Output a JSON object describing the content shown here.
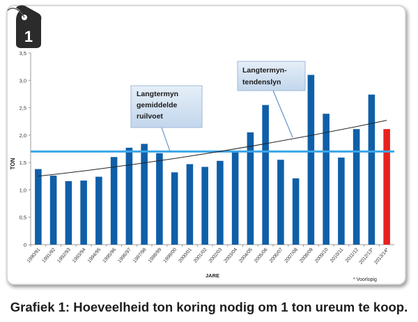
{
  "badge": {
    "number": "1"
  },
  "caption": "Grafiek 1: Hoeveelheid ton koring nodig om 1 ton ureum te koop.",
  "footnote": "* Voorlopig",
  "callouts": {
    "average": {
      "lines": [
        "Langtermyn",
        "gemiddelde",
        "ruilvoet"
      ]
    },
    "trend": {
      "lines": [
        "Langtermyn-",
        "tendenslyn"
      ]
    }
  },
  "colors": {
    "bar": "#0f5fa8",
    "highlight_bar": "#e8211e",
    "average_line": "#3aa6e8",
    "trend_line": "#222222",
    "badge": "#2b2b2b",
    "callout_fill": "#d3e2f2"
  },
  "chart_data": {
    "type": "bar",
    "categories": [
      "1990/91",
      "1991/92",
      "1992/93",
      "1993/94",
      "1994/95",
      "1995/96",
      "1996/97",
      "1997/98",
      "1998/99",
      "1999/00",
      "2000/01",
      "2001/02",
      "2002/03",
      "2003/04",
      "2004/05",
      "2005/06",
      "2006/07",
      "2007/08",
      "2008/09",
      "2009/10",
      "2010/11",
      "2011/12",
      "2012/13*",
      "2013/14*"
    ],
    "values": [
      1.38,
      1.26,
      1.16,
      1.17,
      1.24,
      1.6,
      1.77,
      1.84,
      1.67,
      1.32,
      1.47,
      1.42,
      1.53,
      1.7,
      2.05,
      2.55,
      1.55,
      1.21,
      3.1,
      2.39,
      1.59,
      2.11,
      2.74,
      2.11
    ],
    "highlight_index": 23,
    "xlabel": "JARE",
    "ylabel": "TON",
    "ylim": [
      0,
      3.5
    ],
    "yticks": [
      "0",
      "0,5",
      "1,0",
      "1,5",
      "2,0",
      "2,5",
      "3,0",
      "3,5"
    ],
    "average": 1.7,
    "trend": {
      "start": 1.25,
      "end": 2.27
    },
    "grid": false
  }
}
